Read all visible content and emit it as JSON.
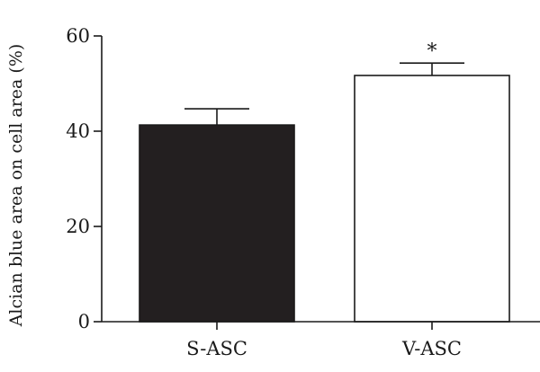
{
  "chart_data": {
    "type": "bar",
    "categories": [
      "S-ASC",
      "V-ASC"
    ],
    "values": [
      41.3,
      51.7
    ],
    "errors": [
      3.4,
      2.6
    ],
    "bar_fills": [
      "#231f20",
      "#ffffff"
    ],
    "annotations": [
      "",
      "*"
    ],
    "ylabel": "Alcian blue area on cell area (%)",
    "xlabel": "",
    "title": "",
    "ylim": [
      0,
      60
    ],
    "yticks": [
      0,
      20,
      40,
      60
    ],
    "ytick_labels": [
      "0",
      "20",
      "40",
      "60"
    ],
    "grid": false,
    "colors": {
      "axis": "#1a1a1a",
      "bar_edge": "#1a1a1a"
    }
  }
}
